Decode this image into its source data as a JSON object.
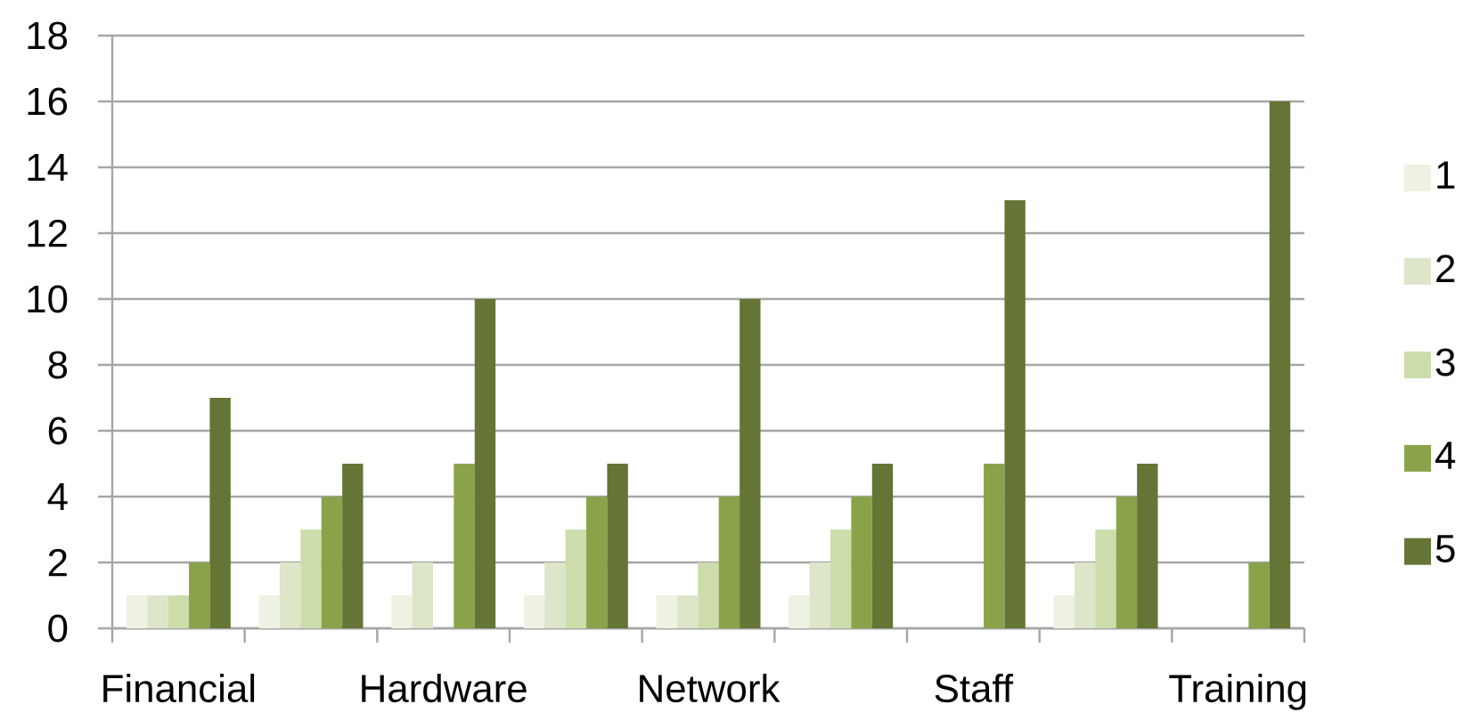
{
  "chart_data": {
    "type": "bar",
    "categories": [
      "Financial",
      null,
      "Hardware",
      null,
      "Network",
      null,
      "Staff",
      null,
      "Training"
    ],
    "series": [
      {
        "name": "1",
        "color": "#EEF2E2",
        "values": [
          1,
          1,
          1,
          1,
          1,
          1,
          null,
          1,
          null
        ]
      },
      {
        "name": "2",
        "color": "#DDE6C8",
        "values": [
          1,
          2,
          2,
          2,
          1,
          2,
          null,
          2,
          null
        ]
      },
      {
        "name": "3",
        "color": "#CDDCAB",
        "values": [
          1,
          3,
          null,
          3,
          2,
          3,
          null,
          3,
          null
        ]
      },
      {
        "name": "4",
        "color": "#8AA34B",
        "values": [
          2,
          4,
          5,
          4,
          4,
          4,
          5,
          4,
          2
        ]
      },
      {
        "name": "5",
        "color": "#647535",
        "values": [
          7,
          5,
          10,
          5,
          10,
          5,
          13,
          5,
          16
        ]
      }
    ],
    "ylim": [
      0,
      18
    ],
    "yticks": [
      0,
      2,
      4,
      6,
      8,
      10,
      12,
      14,
      16,
      18
    ],
    "grid": "y",
    "legend": "right"
  }
}
